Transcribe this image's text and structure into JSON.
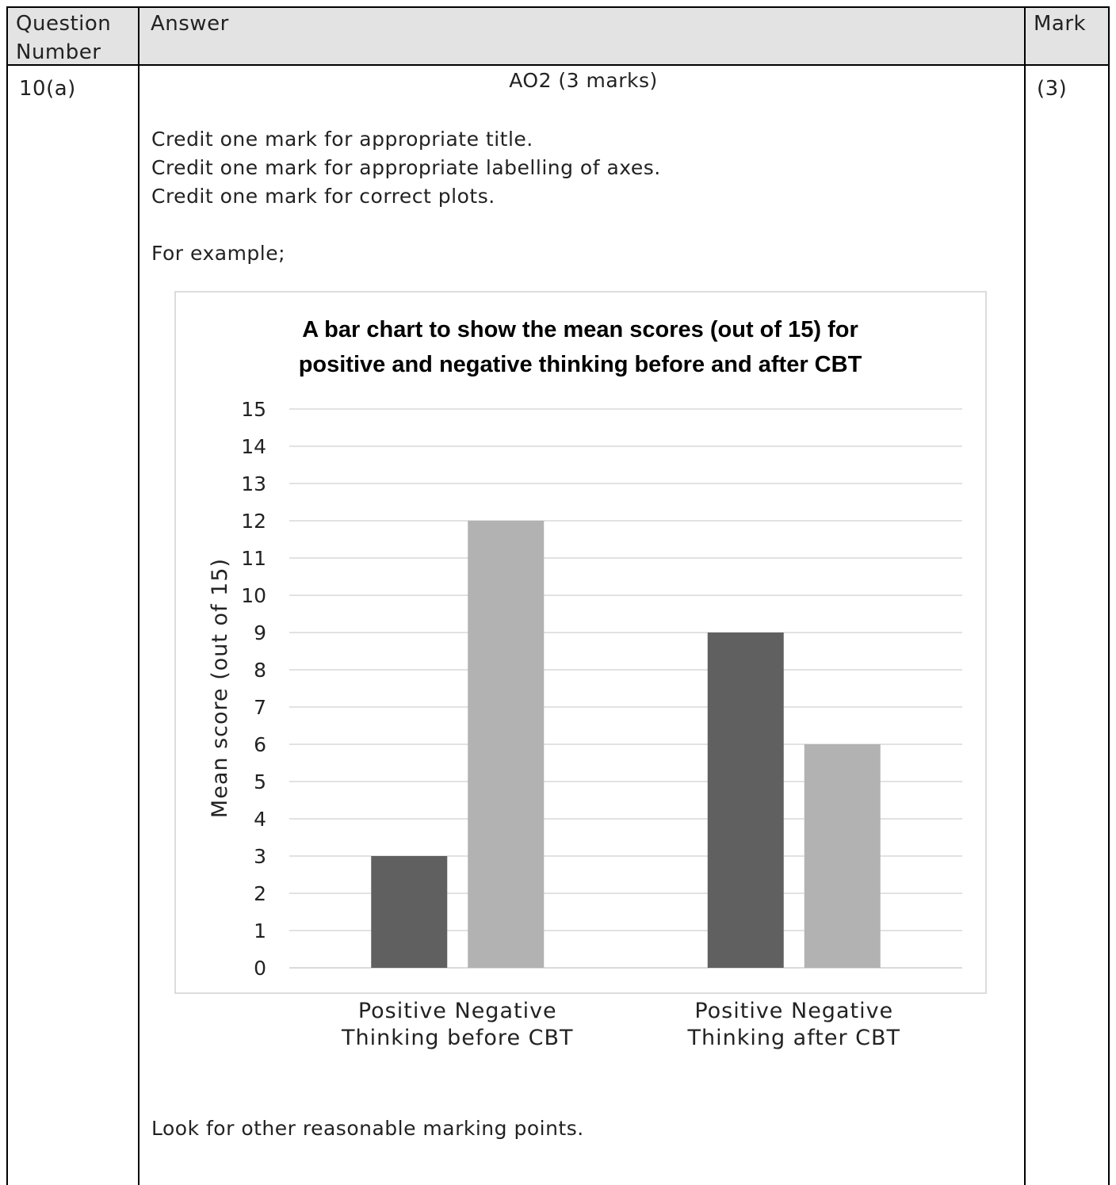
{
  "table": {
    "headers": {
      "question_number": [
        "Question",
        "Number"
      ],
      "answer": "Answer",
      "mark": "Mark"
    },
    "row": {
      "question_number": "10(a)",
      "ao_heading": "AO2 (3 marks)",
      "mark": "(3)",
      "criteria": [
        "Credit one mark for appropriate title.",
        "Credit one mark for appropriate labelling of axes.",
        "Credit one mark for correct plots."
      ],
      "example_intro": "For example;",
      "footer_note": "Look for other reasonable marking points."
    }
  },
  "chart_data": {
    "type": "bar",
    "title": "A bar chart to show the mean scores (out of 15) for positive and negative thinking before and after CBT",
    "title_lines": [
      "A bar chart to show the mean scores (out of 15) for",
      "positive and negative thinking before and after CBT"
    ],
    "ylabel": "Mean score (out of 15)",
    "xlabel": "",
    "ylim": [
      0,
      15
    ],
    "yticks": [
      0,
      1,
      2,
      3,
      4,
      5,
      6,
      7,
      8,
      9,
      10,
      11,
      12,
      13,
      14,
      15
    ],
    "grid": true,
    "legend": "none",
    "categories": [
      [
        "Positive Negative",
        "Thinking before CBT"
      ],
      [
        "Positive Negative",
        "Thinking after CBT"
      ]
    ],
    "series": [
      {
        "values": [
          3,
          9
        ],
        "color": "#606060"
      },
      {
        "values": [
          12,
          6
        ],
        "color": "#b2b2b2"
      }
    ]
  }
}
